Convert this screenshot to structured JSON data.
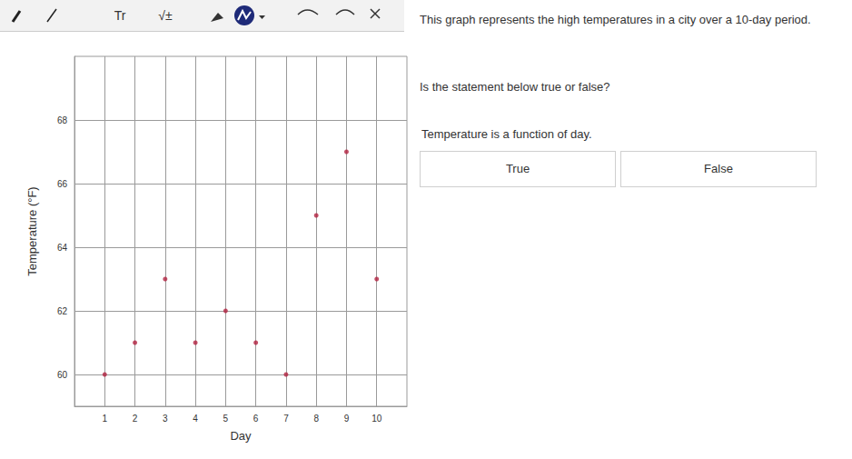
{
  "chart_data": {
    "type": "scatter",
    "x": [
      1,
      2,
      3,
      4,
      5,
      6,
      7,
      8,
      9,
      10
    ],
    "values": [
      60,
      61,
      63,
      61,
      62,
      61,
      60,
      65,
      67,
      63
    ],
    "xlabel": "Day",
    "ylabel": "Temperature (°F)",
    "xlim": [
      0,
      11
    ],
    "ylim": [
      59,
      70
    ],
    "xticks": [
      1,
      2,
      3,
      4,
      5,
      6,
      7,
      8,
      9,
      10
    ],
    "yticks": [
      60,
      62,
      64,
      66,
      68
    ],
    "grid": true,
    "color": "#b22240",
    "marker": "circle"
  },
  "toolbar": [
    "Tr",
    "√±"
  ],
  "question": {
    "prompt": "This graph represents the high temperatures in a city over a 10-day period.",
    "instruction": "Is the statement below true or false?",
    "statement": "Temperature is a function of day.",
    "options": [
      "True",
      "False"
    ]
  }
}
